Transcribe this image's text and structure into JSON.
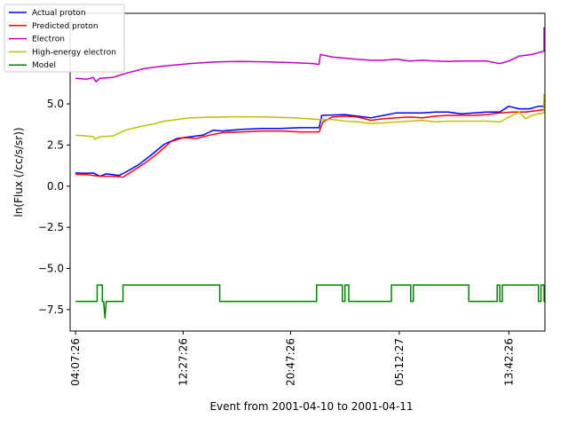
{
  "chart_data": {
    "type": "line",
    "title": "",
    "xlabel": "Event from 2001-04-10 to 2001-04-11",
    "ylabel": "ln(Flux (/cc/s/sr))",
    "x_unit": "hours",
    "xlim": [
      3.7,
      40.5
    ],
    "ylim": [
      -8.8,
      10.5
    ],
    "x_ticks": [
      {
        "value": 4.1239,
        "label": "04:07:26"
      },
      {
        "value": 12.4572,
        "label": "12:27:26"
      },
      {
        "value": 20.7906,
        "label": "20:47:26"
      },
      {
        "value": 29.2075,
        "label": "05:12:27"
      },
      {
        "value": 37.7072,
        "label": "13:42:26"
      }
    ],
    "y_ticks": [
      {
        "value": -7.5,
        "label": "−7.5"
      },
      {
        "value": -5.0,
        "label": "−5.0"
      },
      {
        "value": -2.5,
        "label": "−2.5"
      },
      {
        "value": 0.0,
        "label": "0.0"
      },
      {
        "value": 2.5,
        "label": "2.5"
      },
      {
        "value": 5.0,
        "label": "5.0"
      }
    ],
    "grid": false,
    "legend_position": "top-left",
    "series": [
      {
        "name": "Actual proton",
        "color": "#0000ff",
        "points": [
          [
            4.12,
            0.8
          ],
          [
            5.0,
            0.78
          ],
          [
            5.5,
            0.8
          ],
          [
            6.0,
            0.6
          ],
          [
            6.5,
            0.75
          ],
          [
            7.5,
            0.65
          ],
          [
            8.0,
            0.85
          ],
          [
            9.0,
            1.3
          ],
          [
            10.0,
            1.9
          ],
          [
            11.0,
            2.55
          ],
          [
            12.0,
            2.9
          ],
          [
            13.0,
            3.0
          ],
          [
            14.0,
            3.1
          ],
          [
            14.8,
            3.4
          ],
          [
            15.5,
            3.35
          ],
          [
            17.0,
            3.45
          ],
          [
            18.5,
            3.5
          ],
          [
            20.0,
            3.5
          ],
          [
            21.5,
            3.55
          ],
          [
            23.0,
            3.55
          ],
          [
            23.2,
            4.3
          ],
          [
            25.0,
            4.35
          ],
          [
            27.0,
            4.15
          ],
          [
            28.0,
            4.3
          ],
          [
            29.0,
            4.45
          ],
          [
            30.0,
            4.45
          ],
          [
            31.0,
            4.45
          ],
          [
            32.0,
            4.5
          ],
          [
            33.0,
            4.5
          ],
          [
            34.0,
            4.4
          ],
          [
            35.0,
            4.45
          ],
          [
            36.0,
            4.5
          ],
          [
            37.0,
            4.5
          ],
          [
            37.7,
            4.85
          ],
          [
            38.5,
            4.7
          ],
          [
            39.3,
            4.7
          ],
          [
            40.0,
            4.85
          ],
          [
            41.0,
            4.85
          ],
          [
            42.0,
            5.05
          ],
          [
            42.5,
            5.2
          ],
          [
            43.0,
            5.1
          ]
        ]
      },
      {
        "name": "Predicted proton",
        "color": "#ff0000",
        "points": [
          [
            4.12,
            0.72
          ],
          [
            5.0,
            0.7
          ],
          [
            6.0,
            0.6
          ],
          [
            7.0,
            0.6
          ],
          [
            7.8,
            0.55
          ],
          [
            8.5,
            0.9
          ],
          [
            9.5,
            1.4
          ],
          [
            10.5,
            2.0
          ],
          [
            11.5,
            2.7
          ],
          [
            12.5,
            2.95
          ],
          [
            13.5,
            2.9
          ],
          [
            14.5,
            3.1
          ],
          [
            15.5,
            3.25
          ],
          [
            17.0,
            3.3
          ],
          [
            18.5,
            3.35
          ],
          [
            20.0,
            3.35
          ],
          [
            21.5,
            3.3
          ],
          [
            23.0,
            3.3
          ],
          [
            23.3,
            3.9
          ],
          [
            24.0,
            4.2
          ],
          [
            25.0,
            4.25
          ],
          [
            26.0,
            4.2
          ],
          [
            27.0,
            4.0
          ],
          [
            28.0,
            4.1
          ],
          [
            29.0,
            4.15
          ],
          [
            30.0,
            4.2
          ],
          [
            31.0,
            4.15
          ],
          [
            32.0,
            4.25
          ],
          [
            33.0,
            4.3
          ],
          [
            34.0,
            4.3
          ],
          [
            35.0,
            4.3
          ],
          [
            36.0,
            4.35
          ],
          [
            37.0,
            4.45
          ],
          [
            38.0,
            4.5
          ],
          [
            39.0,
            4.5
          ],
          [
            40.0,
            4.6
          ],
          [
            41.0,
            4.65
          ],
          [
            42.0,
            4.75
          ],
          [
            43.0,
            4.95
          ]
        ]
      },
      {
        "name": "Electron",
        "color": "#c000c0",
        "points": [
          [
            4.12,
            6.55
          ],
          [
            5.0,
            6.5
          ],
          [
            5.5,
            6.6
          ],
          [
            5.7,
            6.35
          ],
          [
            6.0,
            6.55
          ],
          [
            7.0,
            6.6
          ],
          [
            8.0,
            6.85
          ],
          [
            9.5,
            7.15
          ],
          [
            11.0,
            7.3
          ],
          [
            13.0,
            7.45
          ],
          [
            15.0,
            7.55
          ],
          [
            17.0,
            7.58
          ],
          [
            19.0,
            7.55
          ],
          [
            21.0,
            7.5
          ],
          [
            22.5,
            7.45
          ],
          [
            23.0,
            7.4
          ],
          [
            23.1,
            8.0
          ],
          [
            24.0,
            7.85
          ],
          [
            25.0,
            7.78
          ],
          [
            26.0,
            7.7
          ],
          [
            27.0,
            7.65
          ],
          [
            28.0,
            7.65
          ],
          [
            29.0,
            7.72
          ],
          [
            30.0,
            7.6
          ],
          [
            31.0,
            7.65
          ],
          [
            32.0,
            7.6
          ],
          [
            33.0,
            7.58
          ],
          [
            34.0,
            7.6
          ],
          [
            35.0,
            7.6
          ],
          [
            36.0,
            7.6
          ],
          [
            37.0,
            7.45
          ],
          [
            37.7,
            7.6
          ],
          [
            38.5,
            7.9
          ],
          [
            39.5,
            8.0
          ],
          [
            40.5,
            8.2
          ],
          [
            41.5,
            8.3
          ],
          [
            42.0,
            8.5
          ],
          [
            42.5,
            8.75
          ],
          [
            43.0,
            9.65
          ]
        ]
      },
      {
        "name": "High-energy electron",
        "color": "#c0c000",
        "points": [
          [
            4.12,
            3.1
          ],
          [
            5.0,
            3.05
          ],
          [
            5.5,
            3.0
          ],
          [
            5.6,
            2.85
          ],
          [
            6.0,
            3.0
          ],
          [
            7.0,
            3.05
          ],
          [
            8.0,
            3.4
          ],
          [
            9.0,
            3.6
          ],
          [
            10.0,
            3.75
          ],
          [
            11.0,
            3.95
          ],
          [
            12.0,
            4.05
          ],
          [
            13.0,
            4.15
          ],
          [
            15.0,
            4.2
          ],
          [
            17.0,
            4.22
          ],
          [
            19.0,
            4.2
          ],
          [
            21.0,
            4.15
          ],
          [
            23.0,
            4.05
          ],
          [
            24.0,
            4.05
          ],
          [
            25.0,
            3.95
          ],
          [
            26.0,
            3.9
          ],
          [
            27.0,
            3.8
          ],
          [
            28.0,
            3.85
          ],
          [
            29.0,
            3.9
          ],
          [
            30.0,
            3.95
          ],
          [
            31.0,
            4.0
          ],
          [
            32.0,
            3.9
          ],
          [
            33.0,
            3.95
          ],
          [
            34.0,
            3.95
          ],
          [
            35.0,
            3.95
          ],
          [
            36.0,
            3.95
          ],
          [
            37.0,
            3.9
          ],
          [
            37.7,
            4.2
          ],
          [
            38.5,
            4.5
          ],
          [
            39.0,
            4.1
          ],
          [
            39.5,
            4.3
          ],
          [
            40.0,
            4.4
          ],
          [
            41.0,
            4.45
          ],
          [
            42.0,
            4.6
          ],
          [
            42.5,
            4.9
          ],
          [
            43.0,
            5.6
          ]
        ]
      },
      {
        "name": "Model",
        "color": "#008000",
        "points": [
          [
            4.12,
            -7.0
          ],
          [
            5.8,
            -7.0
          ],
          [
            5.8,
            -6.0
          ],
          [
            6.2,
            -6.0
          ],
          [
            6.2,
            -7.0
          ],
          [
            6.3,
            -7.0
          ],
          [
            6.4,
            -8.0
          ],
          [
            6.5,
            -7.0
          ],
          [
            7.8,
            -7.0
          ],
          [
            7.8,
            -6.0
          ],
          [
            15.3,
            -6.0
          ],
          [
            15.3,
            -7.0
          ],
          [
            22.8,
            -7.0
          ],
          [
            22.8,
            -6.0
          ],
          [
            24.8,
            -6.0
          ],
          [
            24.8,
            -7.0
          ],
          [
            25.0,
            -7.0
          ],
          [
            25.0,
            -6.0
          ],
          [
            25.3,
            -6.0
          ],
          [
            25.3,
            -7.0
          ],
          [
            28.6,
            -7.0
          ],
          [
            28.6,
            -6.0
          ],
          [
            30.1,
            -6.0
          ],
          [
            30.1,
            -7.0
          ],
          [
            30.3,
            -7.0
          ],
          [
            30.3,
            -6.0
          ],
          [
            34.6,
            -6.0
          ],
          [
            34.6,
            -7.0
          ],
          [
            36.8,
            -7.0
          ],
          [
            36.8,
            -6.0
          ],
          [
            37.0,
            -6.0
          ],
          [
            37.0,
            -7.0
          ],
          [
            37.2,
            -7.0
          ],
          [
            37.2,
            -6.0
          ],
          [
            40.0,
            -6.0
          ],
          [
            40.0,
            -7.0
          ],
          [
            40.2,
            -7.0
          ],
          [
            40.2,
            -6.0
          ],
          [
            41.8,
            -6.0
          ],
          [
            41.8,
            -7.0
          ],
          [
            42.0,
            -7.0
          ],
          [
            42.0,
            -6.0
          ],
          [
            43.0,
            -6.0
          ]
        ]
      }
    ]
  }
}
